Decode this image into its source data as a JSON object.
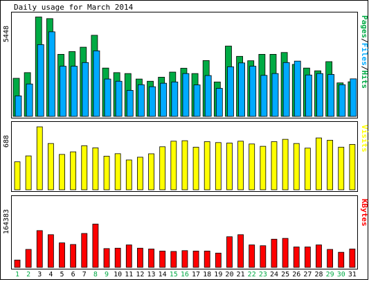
{
  "colors": {
    "background": "#ffffff",
    "panel": "#ffffff",
    "border": "#000000",
    "pages": "#00aa44",
    "files": "#00aaff",
    "visits": "#ffff00",
    "kbytes": "#ff0000",
    "weekend_label": "#00aa44",
    "weekday_label": "#000000"
  },
  "chart_data": {
    "type": "bar",
    "title": "Daily usage for March 2014",
    "x": [
      "1",
      "2",
      "3",
      "4",
      "5",
      "6",
      "7",
      "8",
      "9",
      "10",
      "11",
      "12",
      "13",
      "14",
      "15",
      "16",
      "17",
      "18",
      "19",
      "20",
      "21",
      "22",
      "23",
      "24",
      "25",
      "26",
      "27",
      "28",
      "29",
      "30",
      "31"
    ],
    "weekend_days": [
      "1",
      "2",
      "8",
      "9",
      "15",
      "16",
      "22",
      "23",
      "29",
      "30"
    ],
    "legend_right": [
      {
        "text": "Pages",
        "color": "#00aa44"
      },
      {
        "text": "/",
        "color": "#000000"
      },
      {
        "text": "Files",
        "color": "#00aaff"
      },
      {
        "text": "/",
        "color": "#000000"
      },
      {
        "text": "Hits",
        "color": "#00aa44"
      }
    ],
    "panels": [
      {
        "name": "hits",
        "ymax_label": "5448",
        "ymax": 5448,
        "series": [
          {
            "color": "#00aa44",
            "values": [
              2080,
              2390,
              5430,
              5340,
              3390,
              3540,
              3780,
              4430,
              2640,
              2390,
              2340,
              2040,
              1920,
              2140,
              2420,
              2630,
              2340,
              3050,
              1880,
              3840,
              3280,
              3040,
              3390,
              3390,
              3490,
              2840,
              2640,
              2490,
              2990,
              1830,
              1890
            ]
          },
          {
            "color": "#00aaff",
            "values": [
              1120,
              1770,
              3920,
              4620,
              2740,
              2740,
              2940,
              3580,
              2040,
              1920,
              1420,
              1730,
              1620,
              1810,
              1880,
              2340,
              1720,
              2230,
              1530,
              2710,
              2920,
              2740,
              2240,
              2340,
              2940,
              3020,
              2260,
              2340,
              2290,
              1730,
              2050
            ]
          }
        ]
      },
      {
        "name": "visits",
        "ymax_label": "688",
        "ymax": 688,
        "legend": [
          {
            "text": "Visits",
            "color": "#ffff00"
          }
        ],
        "series": [
          {
            "color": "#ffff00",
            "values": [
              302,
              366,
              680,
              500,
              382,
              410,
              476,
              453,
              363,
              390,
              322,
              352,
              389,
              465,
              525,
              530,
              460,
              520,
              510,
              505,
              525,
              495,
              470,
              520,
              545,
              500,
              450,
              560,
              535,
              460,
              490
            ]
          }
        ]
      },
      {
        "name": "kbytes",
        "ymax_label": "164383",
        "ymax": 164383,
        "legend": [
          {
            "text": "KBytes",
            "color": "#ff0000"
          }
        ],
        "series": [
          {
            "color": "#ff0000",
            "values": [
              18000,
              44000,
              90000,
              80000,
              60000,
              56000,
              83000,
              106000,
              46000,
              47000,
              55000,
              47000,
              45000,
              40000,
              39000,
              41000,
              40000,
              40000,
              35000,
              75000,
              80000,
              55000,
              53000,
              69000,
              71000,
              50000,
              50000,
              55000,
              44000,
              37000,
              45000
            ]
          }
        ]
      }
    ]
  }
}
